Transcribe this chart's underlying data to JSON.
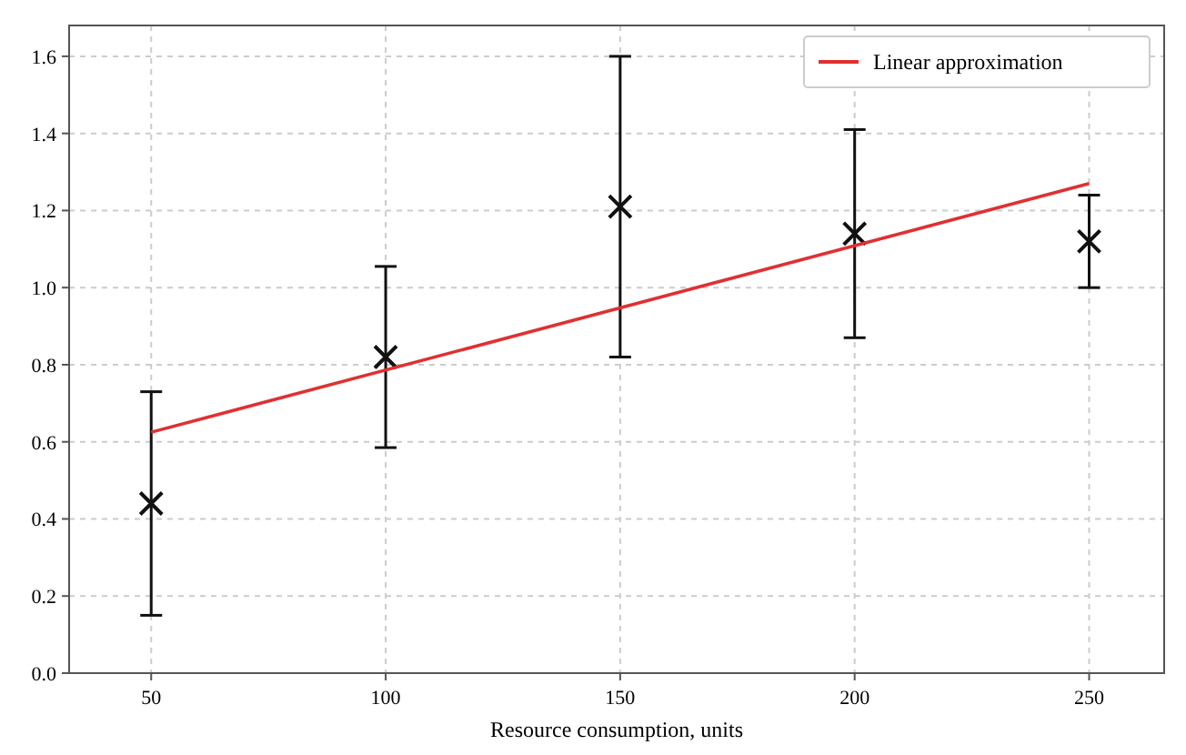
{
  "chart_data": {
    "type": "scatter",
    "xlabel": "Resource consumption, units",
    "xlim": [
      32.5,
      266
    ],
    "ylim": [
      0,
      1.68
    ],
    "xticks": [
      50,
      100,
      150,
      200,
      250
    ],
    "yticks": [
      {
        "value": 0,
        "label": "0.0"
      },
      {
        "value": 0.2,
        "label": "0.2"
      },
      {
        "value": 0.4,
        "label": "0.4"
      },
      {
        "value": 0.6,
        "label": "0.6"
      },
      {
        "value": 0.8,
        "label": "0.8"
      },
      {
        "value": 1,
        "label": "1.0"
      },
      {
        "value": 1.2,
        "label": "1.2"
      },
      {
        "value": 1.4,
        "label": "1.4"
      },
      {
        "value": 1.6,
        "label": "1.6"
      }
    ],
    "grid": true,
    "legend": "top right",
    "series": [
      {
        "color": "#111111",
        "marker": "cross",
        "x": [
          50,
          100,
          150,
          200,
          250
        ],
        "values": [
          0.44,
          0.82,
          1.21,
          1.14,
          1.12
        ],
        "errors": [
          0.29,
          0.235,
          0.39,
          0.27,
          0.12
        ]
      },
      {
        "type": "line",
        "name": "Linear approximation",
        "color": "#e03030",
        "marker": "none",
        "line_style": "solid",
        "x": [
          50,
          250
        ],
        "values": [
          0.625,
          1.27
        ]
      }
    ]
  }
}
